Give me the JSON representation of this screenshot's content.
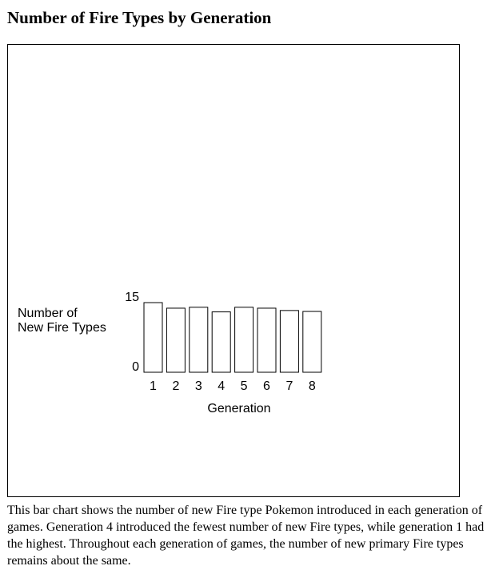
{
  "page": {
    "title": "Number of Fire Types by Generation",
    "description": "This bar chart shows the number of new Fire type Pokemon introduced in each generation of games. Generation 4 introduced the fewest number of new Fire types, while generation 1 had the highest. Throughout each generation of games, the number of new primary Fire types remains about the same."
  },
  "chart_data": {
    "type": "bar",
    "title": "",
    "xlabel": "Generation",
    "ylabel_lines": [
      "Number of",
      "New Fire Types"
    ],
    "categories": [
      "1",
      "2",
      "3",
      "4",
      "5",
      "6",
      "7",
      "8"
    ],
    "values": [
      15,
      13.8,
      14,
      13,
      14,
      13.8,
      13.3,
      13.1
    ],
    "ylim": [
      0,
      15
    ],
    "y_ticks": [
      0,
      15
    ],
    "grid": false,
    "legend": "none",
    "bar_fill": "#ffffff",
    "bar_stroke": "#000000"
  }
}
